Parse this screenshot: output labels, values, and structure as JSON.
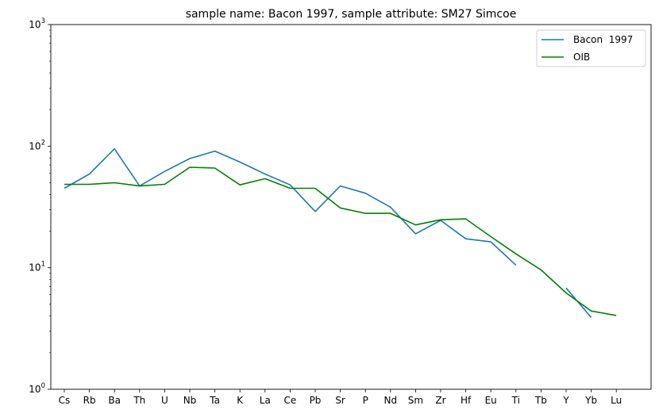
{
  "chart_data": {
    "type": "line",
    "title": "sample name: Bacon  1997, sample attribute: SM27 Simcoe",
    "xlabel": "",
    "ylabel": "",
    "yscale": "log",
    "ylim": [
      1,
      1000
    ],
    "yticks": [
      1,
      10,
      100,
      1000
    ],
    "ytick_labels": [
      {
        "base": "10",
        "exp": "0"
      },
      {
        "base": "10",
        "exp": "1"
      },
      {
        "base": "10",
        "exp": "2"
      },
      {
        "base": "10",
        "exp": "3"
      }
    ],
    "categories": [
      "Cs",
      "Rb",
      "Ba",
      "Th",
      "U",
      "Nb",
      "Ta",
      "K",
      "La",
      "Ce",
      "Pb",
      "Sr",
      "P",
      "Nd",
      "Sm",
      "Zr",
      "Hf",
      "Eu",
      "Ti",
      "Tb",
      "Y",
      "Yb",
      "Lu"
    ],
    "legend": "top-right",
    "grid": false,
    "series": [
      {
        "name": "Bacon  1997",
        "color": "#1f77b4",
        "values": [
          45,
          59,
          95,
          47,
          62,
          79,
          91,
          74,
          59,
          48,
          29,
          47,
          41,
          31.5,
          19,
          24.5,
          17.3,
          16.3,
          10.5,
          null,
          6.8,
          3.9,
          null
        ]
      },
      {
        "name": "OIB",
        "color": "#008000",
        "values": [
          48.5,
          48.5,
          50,
          47,
          48.5,
          67,
          66,
          48,
          54,
          45,
          45,
          31,
          28,
          28,
          22.5,
          24.8,
          25.2,
          18,
          13,
          9.6,
          6.2,
          4.4,
          4.05
        ]
      }
    ]
  }
}
